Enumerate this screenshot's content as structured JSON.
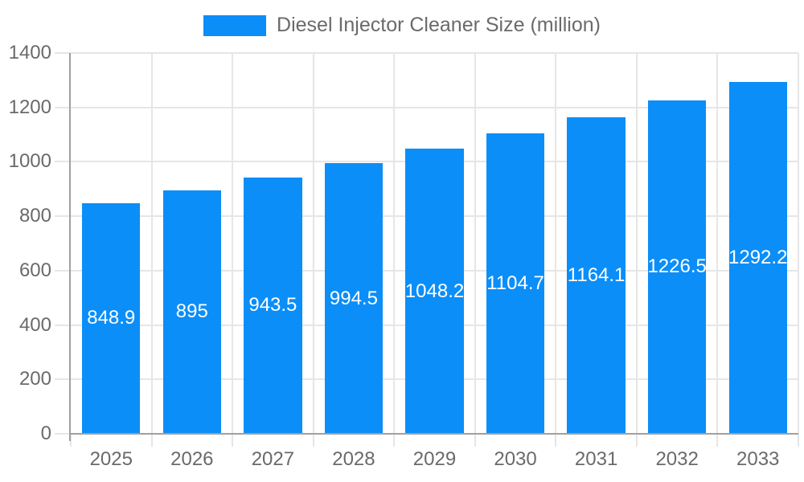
{
  "chart_data": {
    "type": "bar",
    "title": "Diesel Injector Cleaner Size (million)",
    "categories": [
      "2025",
      "2026",
      "2027",
      "2028",
      "2029",
      "2030",
      "2031",
      "2032",
      "2033"
    ],
    "values": [
      848.9,
      895,
      943.5,
      994.5,
      1048.2,
      1104.7,
      1164.1,
      1226.5,
      1292.2
    ],
    "value_labels": [
      "848.9",
      "895",
      "943.5",
      "994.5",
      "1048.2",
      "1104.7",
      "1164.1",
      "1226.5",
      "1292.2"
    ],
    "xlabel": "",
    "ylabel": "",
    "ylim": [
      0,
      1400
    ],
    "ytick_step": 200,
    "ytick_labels": [
      "0",
      "200",
      "400",
      "600",
      "800",
      "1000",
      "1200",
      "1400"
    ],
    "grid": true,
    "legend_position": "top",
    "colors": {
      "bar": "#0b8ef8",
      "grid": "#e6e6e6",
      "axis": "#a0a0a0",
      "text": "#6a6a6a",
      "bar_label": "#ffffff",
      "background": "#ffffff"
    }
  }
}
